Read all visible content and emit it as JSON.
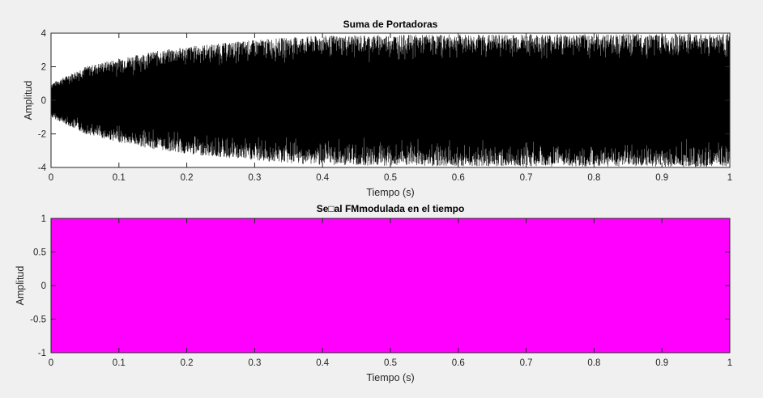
{
  "chart_data": [
    {
      "type": "line",
      "title": "Suma de Portadoras",
      "xlabel": "Tiempo (s)",
      "ylabel": "Amplitud",
      "xlim": [
        0,
        1
      ],
      "ylim": [
        -4,
        4
      ],
      "xticks": [
        "0",
        "0.1",
        "0.2",
        "0.3",
        "0.4",
        "0.5",
        "0.6",
        "0.7",
        "0.8",
        "0.9",
        "1"
      ],
      "yticks": [
        "4",
        "2",
        "0",
        "-2",
        "-4"
      ],
      "grid": false,
      "series": [
        {
          "color": "#000000",
          "fill": "dense oscillation",
          "envelope_x": [
            0,
            0.05,
            0.1,
            0.15,
            0.2,
            0.25,
            0.3,
            0.35,
            0.4,
            0.5,
            0.6,
            0.7,
            0.8,
            0.9,
            1
          ],
          "envelope_upper": [
            1.0,
            2.0,
            2.5,
            2.9,
            3.2,
            3.4,
            3.6,
            3.75,
            3.85,
            3.9,
            3.92,
            3.94,
            3.95,
            3.96,
            3.97
          ],
          "envelope_lower": [
            -1.0,
            -2.0,
            -2.5,
            -2.9,
            -3.2,
            -3.4,
            -3.6,
            -3.75,
            -3.85,
            -3.9,
            -3.92,
            -3.94,
            -3.95,
            -3.96,
            -3.97
          ]
        }
      ]
    },
    {
      "type": "line",
      "title": "Se□al FMmodulada en el tiempo",
      "xlabel": "Tiempo (s)",
      "ylabel": "Amplitud",
      "xlim": [
        0,
        1
      ],
      "ylim": [
        -1,
        1
      ],
      "xticks": [
        "0",
        "0.1",
        "0.2",
        "0.3",
        "0.4",
        "0.5",
        "0.6",
        "0.7",
        "0.8",
        "0.9",
        "1"
      ],
      "yticks": [
        "1",
        "0.5",
        "0",
        "-0.5",
        "-1"
      ],
      "grid": false,
      "series": [
        {
          "color": "#ff00ff",
          "fill": "dense oscillation",
          "envelope_x": [
            0,
            1
          ],
          "envelope_upper": [
            1,
            1
          ],
          "envelope_lower": [
            -1,
            -1
          ]
        }
      ]
    }
  ]
}
